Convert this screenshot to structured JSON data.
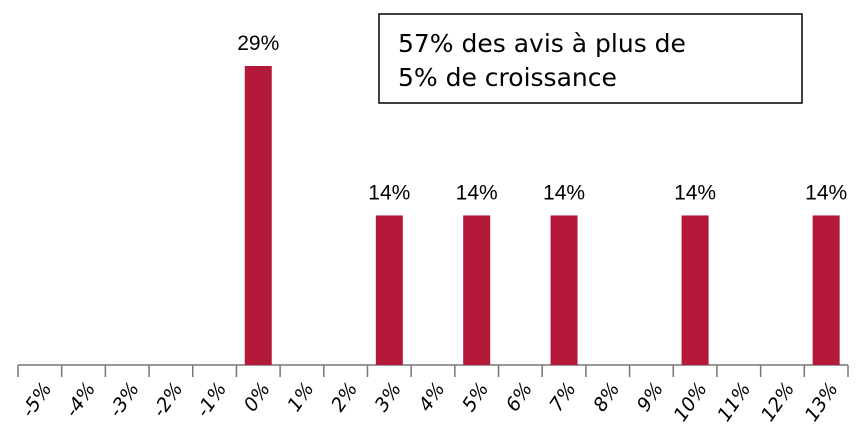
{
  "chart_data": {
    "type": "bar",
    "categories": [
      "-5%",
      "-4%",
      "-3%",
      "-2%",
      "-1%",
      "0%",
      "1%",
      "2%",
      "3%",
      "4%",
      "5%",
      "6%",
      "7%",
      "8%",
      "9%",
      "10%",
      "11%",
      "12%",
      "13%"
    ],
    "values": [
      0,
      0,
      0,
      0,
      0,
      28.57,
      0,
      0,
      14.29,
      0,
      14.29,
      0,
      14.29,
      0,
      0,
      14.29,
      0,
      0,
      14.29
    ],
    "value_labels": [
      null,
      null,
      null,
      null,
      null,
      "29%",
      null,
      null,
      "14%",
      null,
      "14%",
      null,
      "14%",
      null,
      null,
      "14%",
      null,
      null,
      "14%"
    ],
    "color": "#b5193a",
    "annotation": [
      "57% des avis à plus de",
      "5% de croissance"
    ]
  }
}
